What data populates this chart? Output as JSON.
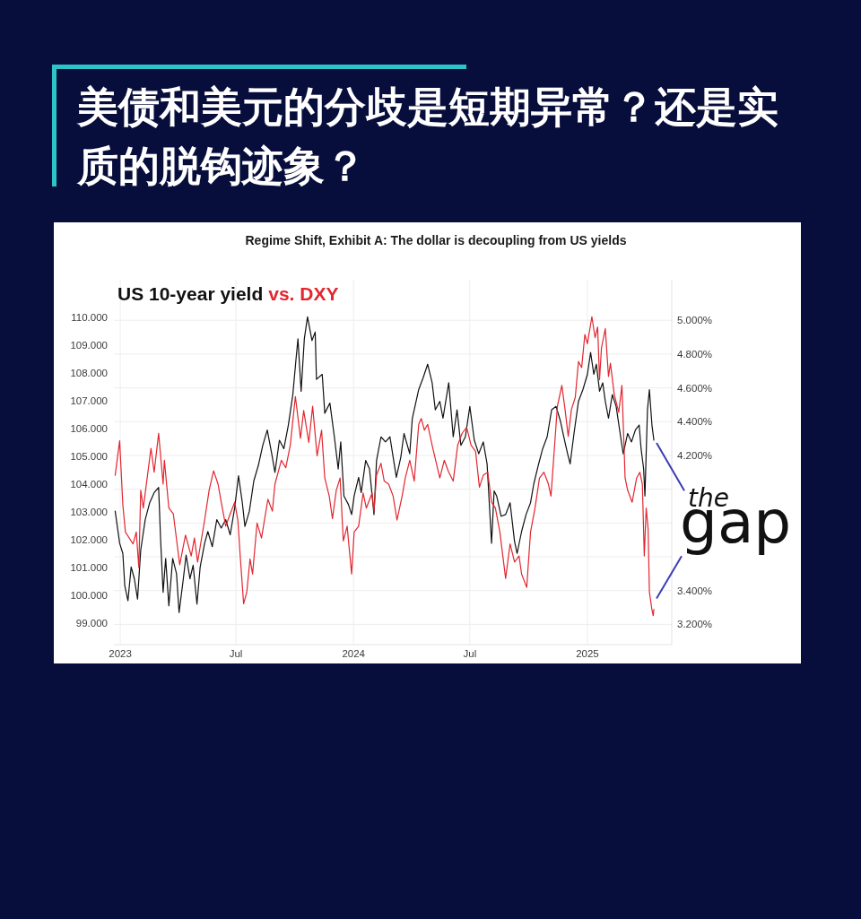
{
  "chart_data": {
    "type": "line",
    "title": "美债和美元的分歧是短期异常？还是实质的脱钩迹象？",
    "subtitle": "Regime Shift, Exhibit A: The dollar is decoupling from US yields",
    "annotations": [
      {
        "text": "the gap",
        "x": "2025-04-15",
        "y": 99.5
      }
    ],
    "xlim": [
      "2022-12-22",
      "2025-05-13"
    ],
    "xticks": [
      {
        "value": "2023-01-01",
        "label": "2023"
      },
      {
        "value": "2023-07-01",
        "label": "Jul"
      },
      {
        "value": "2024-01-01",
        "label": "2024"
      },
      {
        "value": "2024-07-01",
        "label": "Jul"
      },
      {
        "value": "2025-01-01",
        "label": "2025"
      }
    ],
    "ylim": [
      98.23,
      111.35
    ],
    "yticks": [
      {
        "value": 99,
        "label": "99.000"
      },
      {
        "value": 100,
        "label": "100.000"
      },
      {
        "value": 101,
        "label": "101.000"
      },
      {
        "value": 102,
        "label": "102.000"
      },
      {
        "value": 103,
        "label": "103.000"
      },
      {
        "value": 104,
        "label": "104.000"
      },
      {
        "value": 105,
        "label": "105.000"
      },
      {
        "value": 106,
        "label": "106.000"
      },
      {
        "value": 107,
        "label": "107.000"
      },
      {
        "value": 108,
        "label": "108.000"
      },
      {
        "value": 109,
        "label": "109.000"
      },
      {
        "value": 110,
        "label": "110.000"
      }
    ],
    "y2lim": [
      3.08,
      5.24
    ],
    "y2ticks": [
      {
        "value": 3.2,
        "label": "3.200%"
      },
      {
        "value": 3.4,
        "label": "3.400%"
      },
      {
        "value": 3.6,
        "label": null
      },
      {
        "value": 3.8,
        "label": null
      },
      {
        "value": 4.0,
        "label": null
      },
      {
        "value": 4.2,
        "label": "4.200%"
      },
      {
        "value": 4.4,
        "label": "4.400%"
      },
      {
        "value": 4.6,
        "label": "4.600%"
      },
      {
        "value": 4.8,
        "label": "4.800%"
      },
      {
        "value": 5.0,
        "label": "5.000%"
      }
    ],
    "grid": true,
    "legend": "top left",
    "series": [
      {
        "name": "US 10-year yield",
        "color": "#111111",
        "axis": "y2",
        "x": [
          "2022-12-24",
          "2022-12-31",
          "2023-01-05",
          "2023-01-08",
          "2023-01-13",
          "2023-01-18",
          "2023-01-23",
          "2023-01-28",
          "2023-02-02",
          "2023-02-09",
          "2023-02-16",
          "2023-02-23",
          "2023-03-02",
          "2023-03-05",
          "2023-03-09",
          "2023-03-13",
          "2023-03-18",
          "2023-03-24",
          "2023-03-30",
          "2023-04-03",
          "2023-04-09",
          "2023-04-14",
          "2023-04-20",
          "2023-04-25",
          "2023-05-01",
          "2023-05-06",
          "2023-05-13",
          "2023-05-18",
          "2023-05-25",
          "2023-06-01",
          "2023-06-08",
          "2023-06-15",
          "2023-06-22",
          "2023-06-29",
          "2023-07-05",
          "2023-07-11",
          "2023-07-15",
          "2023-07-22",
          "2023-07-29",
          "2023-08-05",
          "2023-08-12",
          "2023-08-19",
          "2023-08-26",
          "2023-08-31",
          "2023-09-07",
          "2023-09-14",
          "2023-09-21",
          "2023-09-28",
          "2023-10-03",
          "2023-10-06",
          "2023-10-11",
          "2023-10-16",
          "2023-10-21",
          "2023-10-28",
          "2023-11-02",
          "2023-11-04",
          "2023-11-13",
          "2023-11-17",
          "2023-11-25",
          "2023-12-02",
          "2023-12-08",
          "2023-12-12",
          "2023-12-17",
          "2023-12-24",
          "2023-12-29",
          "2024-01-02",
          "2024-01-09",
          "2024-01-13",
          "2024-01-20",
          "2024-01-26",
          "2024-02-02",
          "2024-02-06",
          "2024-02-13",
          "2024-02-20",
          "2024-02-27",
          "2024-03-08",
          "2024-03-15",
          "2024-03-20",
          "2024-03-29",
          "2024-04-02",
          "2024-04-12",
          "2024-04-19",
          "2024-04-26",
          "2024-05-03",
          "2024-05-08",
          "2024-05-15",
          "2024-05-20",
          "2024-05-29",
          "2024-06-05",
          "2024-06-11",
          "2024-06-17",
          "2024-06-24",
          "2024-07-01",
          "2024-07-08",
          "2024-07-15",
          "2024-07-22",
          "2024-07-28",
          "2024-08-04",
          "2024-08-08",
          "2024-08-12",
          "2024-08-19",
          "2024-08-26",
          "2024-09-02",
          "2024-09-09",
          "2024-09-13",
          "2024-09-20",
          "2024-09-27",
          "2024-10-04",
          "2024-10-09",
          "2024-10-16",
          "2024-10-23",
          "2024-10-30",
          "2024-11-06",
          "2024-11-13",
          "2024-11-20",
          "2024-11-25",
          "2024-12-01",
          "2024-12-05",
          "2024-12-11",
          "2024-12-18",
          "2024-12-25",
          "2025-01-01",
          "2025-01-06",
          "2025-01-11",
          "2025-01-15",
          "2025-01-20",
          "2025-01-25",
          "2025-01-29",
          "2025-02-03",
          "2025-02-09",
          "2025-02-15",
          "2025-02-22",
          "2025-02-26",
          "2025-03-05",
          "2025-03-11",
          "2025-03-17",
          "2025-03-23",
          "2025-03-26",
          "2025-03-30",
          "2025-04-01",
          "2025-04-05",
          "2025-04-08",
          "2025-04-12",
          "2025-04-15"
        ],
        "values": [
          3.87,
          3.68,
          3.62,
          3.43,
          3.34,
          3.54,
          3.47,
          3.35,
          3.64,
          3.82,
          3.92,
          3.98,
          4.01,
          3.71,
          3.39,
          3.59,
          3.31,
          3.59,
          3.5,
          3.27,
          3.45,
          3.61,
          3.47,
          3.55,
          3.32,
          3.54,
          3.68,
          3.75,
          3.66,
          3.82,
          3.77,
          3.82,
          3.73,
          3.89,
          4.08,
          3.92,
          3.78,
          3.87,
          4.05,
          4.14,
          4.26,
          4.35,
          4.21,
          4.1,
          4.29,
          4.24,
          4.38,
          4.56,
          4.77,
          4.89,
          4.58,
          4.89,
          5.02,
          4.88,
          4.93,
          4.65,
          4.68,
          4.45,
          4.51,
          4.31,
          4.12,
          4.28,
          3.96,
          3.91,
          3.85,
          3.96,
          4.07,
          3.98,
          4.17,
          4.12,
          3.85,
          4.17,
          4.31,
          4.28,
          4.31,
          4.07,
          4.19,
          4.33,
          4.21,
          4.42,
          4.59,
          4.66,
          4.74,
          4.63,
          4.47,
          4.52,
          4.42,
          4.63,
          4.31,
          4.47,
          4.26,
          4.31,
          4.49,
          4.29,
          4.21,
          4.28,
          4.15,
          3.68,
          3.99,
          3.96,
          3.84,
          3.85,
          3.92,
          3.69,
          3.62,
          3.75,
          3.85,
          3.92,
          4.03,
          4.14,
          4.24,
          4.31,
          4.47,
          4.49,
          4.4,
          4.31,
          4.21,
          4.15,
          4.33,
          4.52,
          4.59,
          4.68,
          4.81,
          4.68,
          4.74,
          4.58,
          4.63,
          4.52,
          4.42,
          4.56,
          4.49,
          4.31,
          4.21,
          4.33,
          4.28,
          4.35,
          4.38,
          4.24,
          4.12,
          3.96,
          4.47,
          4.59,
          4.38,
          4.29
        ]
      },
      {
        "name": "vs. DXY",
        "color": "#e3262f",
        "x": [
          "2022-12-24",
          "2022-12-31",
          "2023-01-05",
          "2023-01-09",
          "2023-01-21",
          "2023-01-26",
          "2023-01-30",
          "2023-02-02",
          "2023-02-06",
          "2023-02-18",
          "2023-02-23",
          "2023-03-02",
          "2023-03-09",
          "2023-03-11",
          "2023-03-18",
          "2023-03-25",
          "2023-04-04",
          "2023-04-13",
          "2023-04-22",
          "2023-04-27",
          "2023-05-02",
          "2023-05-13",
          "2023-05-20",
          "2023-05-27",
          "2023-06-03",
          "2023-06-08",
          "2023-06-15",
          "2023-06-22",
          "2023-06-29",
          "2023-07-04",
          "2023-07-08",
          "2023-07-13",
          "2023-07-18",
          "2023-07-23",
          "2023-07-27",
          "2023-08-03",
          "2023-08-10",
          "2023-08-20",
          "2023-08-27",
          "2023-08-31",
          "2023-09-10",
          "2023-09-17",
          "2023-09-24",
          "2023-10-02",
          "2023-10-10",
          "2023-10-15",
          "2023-10-23",
          "2023-10-29",
          "2023-11-05",
          "2023-11-12",
          "2023-11-17",
          "2023-11-24",
          "2023-11-29",
          "2023-12-05",
          "2023-12-11",
          "2023-12-16",
          "2023-12-22",
          "2023-12-29",
          "2024-01-02",
          "2024-01-09",
          "2024-01-16",
          "2024-01-21",
          "2024-01-30",
          "2024-02-02",
          "2024-02-06",
          "2024-02-13",
          "2024-02-18",
          "2024-02-25",
          "2024-03-03",
          "2024-03-09",
          "2024-03-17",
          "2024-03-22",
          "2024-03-29",
          "2024-04-05",
          "2024-04-12",
          "2024-04-16",
          "2024-04-21",
          "2024-04-26",
          "2024-05-03",
          "2024-05-15",
          "2024-05-22",
          "2024-05-29",
          "2024-06-05",
          "2024-06-12",
          "2024-06-19",
          "2024-06-26",
          "2024-07-03",
          "2024-07-10",
          "2024-07-16",
          "2024-07-22",
          "2024-07-29",
          "2024-08-04",
          "2024-08-10",
          "2024-08-17",
          "2024-08-26",
          "2024-09-02",
          "2024-09-09",
          "2024-09-16",
          "2024-09-20",
          "2024-09-28",
          "2024-10-04",
          "2024-10-11",
          "2024-10-18",
          "2024-10-25",
          "2024-11-01",
          "2024-11-05",
          "2024-11-11",
          "2024-11-15",
          "2024-11-22",
          "2024-11-27",
          "2024-12-02",
          "2024-12-07",
          "2024-12-13",
          "2024-12-18",
          "2024-12-23",
          "2024-12-28",
          "2025-01-01",
          "2025-01-08",
          "2025-01-13",
          "2025-01-17",
          "2025-01-20",
          "2025-01-23",
          "2025-01-29",
          "2025-02-03",
          "2025-02-06",
          "2025-02-12",
          "2025-02-19",
          "2025-02-24",
          "2025-03-01",
          "2025-03-05",
          "2025-03-12",
          "2025-03-19",
          "2025-03-24",
          "2025-03-28",
          "2025-03-31",
          "2025-04-03",
          "2025-04-06",
          "2025-04-08",
          "2025-04-12",
          "2025-04-14",
          "2025-04-15"
        ],
        "values": [
          104.32,
          105.56,
          103.25,
          102.28,
          101.85,
          102.28,
          101.0,
          103.78,
          103.14,
          105.29,
          104.43,
          105.83,
          104.0,
          104.86,
          103.14,
          102.93,
          101.1,
          102.17,
          101.42,
          102.06,
          101.2,
          102.71,
          103.78,
          104.48,
          104.0,
          103.35,
          102.49,
          102.93,
          103.35,
          102.71,
          101.31,
          99.7,
          100.13,
          101.31,
          100.77,
          102.6,
          102.06,
          103.46,
          103.03,
          104.0,
          104.86,
          104.59,
          105.4,
          107.15,
          105.65,
          106.65,
          105.5,
          106.8,
          105.02,
          105.94,
          104.22,
          103.57,
          102.76,
          103.78,
          104.22,
          101.96,
          102.49,
          100.77,
          102.28,
          102.49,
          103.68,
          103.14,
          103.68,
          103.03,
          104.32,
          104.75,
          104.11,
          104.0,
          103.57,
          102.71,
          103.57,
          104.22,
          104.86,
          104.11,
          106.15,
          106.36,
          105.94,
          106.15,
          105.4,
          104.22,
          104.86,
          104.43,
          104.11,
          105.4,
          105.83,
          106.04,
          105.4,
          105.18,
          103.89,
          104.32,
          104.43,
          103.35,
          103.14,
          102.28,
          100.61,
          101.85,
          101.2,
          101.42,
          100.77,
          100.29,
          102.28,
          103.14,
          104.22,
          104.43,
          104.0,
          103.57,
          105.5,
          106.8,
          107.55,
          106.69,
          105.72,
          106.69,
          107.12,
          108.41,
          108.19,
          109.38,
          109.05,
          110.02,
          109.27,
          109.65,
          107.76,
          108.9,
          109.59,
          107.87,
          108.35,
          107.23,
          106.58,
          107.55,
          104.22,
          103.78,
          103.35,
          104.22,
          104.43,
          104.0,
          101.42,
          103.14,
          102.39,
          100.13,
          99.48,
          99.27,
          99.5
        ]
      }
    ]
  }
}
